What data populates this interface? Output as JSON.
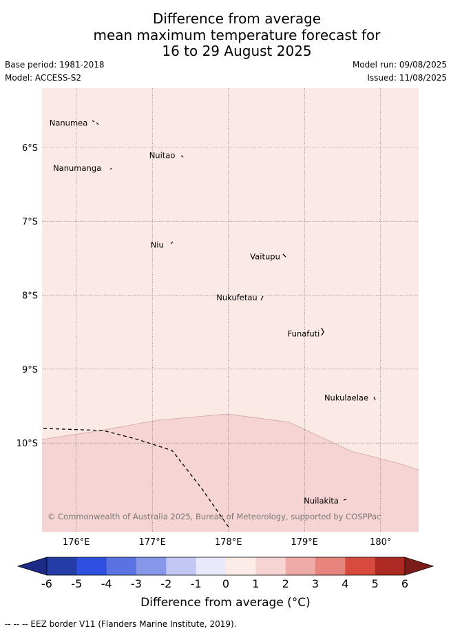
{
  "title": {
    "line1": "Difference from average",
    "line2": "mean maximum temperature forecast for",
    "line3": "16 to 29 August 2025"
  },
  "meta": {
    "base_period": "Base period: 1981-2018",
    "model": "Model: ACCESS-S2",
    "model_run": "Model run: 09/08/2025",
    "issued": "Issued: 11/08/2025"
  },
  "map": {
    "lon_range": [
      175.55,
      180.5
    ],
    "lat_range": [
      -11.2,
      -5.2
    ],
    "lon_ticks": [
      {
        "value": 176,
        "label": "176°E"
      },
      {
        "value": 177,
        "label": "177°E"
      },
      {
        "value": 178,
        "label": "178°E"
      },
      {
        "value": 179,
        "label": "179°E"
      },
      {
        "value": 180,
        "label": "180°"
      }
    ],
    "lat_ticks": [
      {
        "value": -6,
        "label": "6°S"
      },
      {
        "value": -7,
        "label": "7°S"
      },
      {
        "value": -8,
        "label": "8°S"
      },
      {
        "value": -9,
        "label": "9°S"
      },
      {
        "value": -10,
        "label": "10°S"
      }
    ],
    "gridlines": true,
    "fill_categories": [
      {
        "range": "0 to 1",
        "color": "#fbe9e6"
      },
      {
        "range": "1 to 2",
        "color": "#f5d4d3"
      }
    ],
    "places": [
      {
        "name": "Nanumea",
        "lon": 176.15,
        "lat": -5.67
      },
      {
        "name": "Nuitao",
        "lon": 177.3,
        "lat": -6.11
      },
      {
        "name": "Nanumanga",
        "lon": 176.33,
        "lat": -6.28
      },
      {
        "name": "Niu",
        "lon": 177.15,
        "lat": -7.32
      },
      {
        "name": "Vaitupu",
        "lon": 178.68,
        "lat": -7.48
      },
      {
        "name": "Nukufetau",
        "lon": 178.38,
        "lat": -8.03
      },
      {
        "name": "Funafuti",
        "lon": 179.2,
        "lat": -8.52
      },
      {
        "name": "Nukulaelae",
        "lon": 179.84,
        "lat": -9.39
      },
      {
        "name": "Nuilakita",
        "lon": 179.45,
        "lat": -10.78
      }
    ],
    "copyright": "© Commonwealth of Australia 2025, Bureau of Meteorology, supported by COSPPac"
  },
  "colorbar": {
    "tick_labels": [
      "-6",
      "-5",
      "-4",
      "-3",
      "-2",
      "-1",
      "0",
      "1",
      "2",
      "3",
      "4",
      "5",
      "6"
    ],
    "colors": [
      "#243da7",
      "#2e4fdf",
      "#5a72e2",
      "#8697ea",
      "#c2c8f3",
      "#e8eafb",
      "#fcece8",
      "#f5d4d3",
      "#edaaa6",
      "#e5857e",
      "#d94a3e",
      "#ad2a22"
    ],
    "under_color": "#1c2b85",
    "over_color": "#7b1c18",
    "label": "Difference from average (°C)"
  },
  "footnote": "--  --  -- EEZ border V11 (Flanders Marine Institute, 2019)."
}
